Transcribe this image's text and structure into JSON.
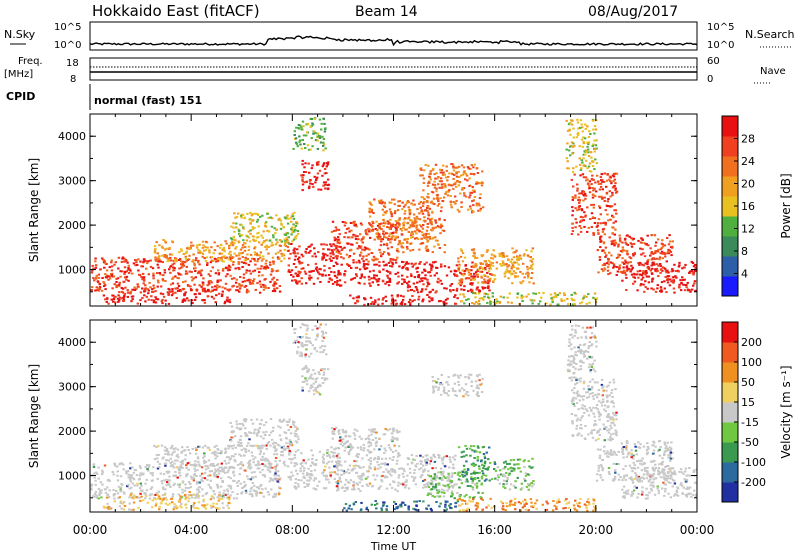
{
  "header": {
    "station": "Hokkaido East (fitACF)",
    "beam": "Beam 14",
    "date": "08/Aug/2017"
  },
  "strips": {
    "noise_label": "N.Sky",
    "noise_ticks": [
      "10^5",
      "10^0"
    ],
    "noise_right_label": "N.Search",
    "freq_label_1": "Freq.",
    "freq_label_2": "[MHz]",
    "freq_ticks": [
      "18",
      "8"
    ],
    "nave_label": "Nave",
    "nave_ticks": [
      "60",
      "0"
    ],
    "cpid_label": "CPID",
    "cpid_value": "normal (fast) 151"
  },
  "colors": {
    "power_scale": [
      "#1a1aff",
      "#2c5fa8",
      "#3a8a5a",
      "#4fb040",
      "#e8c020",
      "#f0a020",
      "#f07020",
      "#f04020",
      "#e81010"
    ],
    "velocity_scale": [
      "#2030a0",
      "#2c6aa0",
      "#3a9a50",
      "#70c840",
      "#c8c8c8",
      "#f0d060",
      "#f09020",
      "#f05a20",
      "#e81010"
    ]
  },
  "chart_data": [
    {
      "type": "heatmap",
      "name": "power",
      "ylabel": "Slant Range [km]",
      "colorbar_label": "Power [dB]",
      "colorbar_ticks": [
        "28",
        "24",
        "20",
        "16",
        "12",
        "8",
        "4"
      ],
      "yticks": [
        "4000",
        "3000",
        "2000",
        "1000"
      ],
      "xticks": [
        "00:00",
        "04:00",
        "08:00",
        "12:00",
        "16:00",
        "20:00",
        "00:00"
      ],
      "ylim": [
        180,
        4500
      ],
      "xlim": [
        0,
        24
      ],
      "regions": [
        {
          "t0": 0.0,
          "t1": 7.5,
          "r0": 500,
          "r1": 1300,
          "level": 7
        },
        {
          "t0": 0.5,
          "t1": 5.5,
          "r0": 250,
          "r1": 600,
          "level": 8
        },
        {
          "t0": 2.5,
          "t1": 7.8,
          "r0": 1200,
          "r1": 1700,
          "level": 5
        },
        {
          "t0": 5.5,
          "t1": 8.2,
          "r0": 1600,
          "r1": 2300,
          "level": 4
        },
        {
          "t0": 8.3,
          "t1": 9.4,
          "r0": 2800,
          "r1": 3500,
          "level": 8
        },
        {
          "t0": 8.0,
          "t1": 9.3,
          "r0": 3700,
          "r1": 4450,
          "level": 3
        },
        {
          "t0": 7.8,
          "t1": 9.8,
          "r0": 700,
          "r1": 1600,
          "level": 8
        },
        {
          "t0": 9.5,
          "t1": 12.2,
          "r0": 1200,
          "r1": 2100,
          "level": 7
        },
        {
          "t0": 9.7,
          "t1": 12.5,
          "r0": 650,
          "r1": 1200,
          "level": 8
        },
        {
          "t0": 11.0,
          "t1": 13.5,
          "r0": 1700,
          "r1": 2600,
          "level": 6
        },
        {
          "t0": 12.5,
          "t1": 15.8,
          "r0": 500,
          "r1": 1200,
          "level": 8
        },
        {
          "t0": 12.0,
          "t1": 14.0,
          "r0": 1400,
          "r1": 2200,
          "level": 6
        },
        {
          "t0": 13.0,
          "t1": 15.5,
          "r0": 2300,
          "r1": 3400,
          "level": 6
        },
        {
          "t0": 14.5,
          "t1": 17.5,
          "r0": 700,
          "r1": 1500,
          "level": 5
        },
        {
          "t0": 10.0,
          "t1": 14.5,
          "r0": 230,
          "r1": 450,
          "level": 8
        },
        {
          "t0": 14.5,
          "t1": 20.0,
          "r0": 230,
          "r1": 500,
          "level": 4
        },
        {
          "t0": 19.0,
          "t1": 20.8,
          "r0": 1800,
          "r1": 3200,
          "level": 7
        },
        {
          "t0": 18.8,
          "t1": 20.0,
          "r0": 3200,
          "r1": 4400,
          "level": 4
        },
        {
          "t0": 20.0,
          "t1": 23.0,
          "r0": 900,
          "r1": 1800,
          "level": 7
        },
        {
          "t0": 21.0,
          "t1": 24.0,
          "r0": 500,
          "r1": 1200,
          "level": 8
        }
      ]
    },
    {
      "type": "heatmap",
      "name": "velocity",
      "ylabel": "Slant Range [km]",
      "colorbar_label": "Velocity [m s⁻¹]",
      "colorbar_ticks": [
        "200",
        "100",
        "50",
        "15",
        "-15",
        "-50",
        "-100",
        "-200"
      ],
      "yticks": [
        "4000",
        "3000",
        "2000",
        "1000"
      ],
      "xticks": [
        "00:00",
        "04:00",
        "08:00",
        "12:00",
        "16:00",
        "20:00",
        "00:00"
      ],
      "xlabel": "Time UT",
      "ylim": [
        180,
        4500
      ],
      "xlim": [
        0,
        24
      ],
      "regions": [
        {
          "t0": 0.0,
          "t1": 7.5,
          "r0": 500,
          "r1": 1300,
          "level": 4
        },
        {
          "t0": 0.5,
          "t1": 5.5,
          "r0": 250,
          "r1": 600,
          "level": 5
        },
        {
          "t0": 2.5,
          "t1": 7.8,
          "r0": 1200,
          "r1": 1700,
          "level": 4
        },
        {
          "t0": 5.5,
          "t1": 8.2,
          "r0": 1600,
          "r1": 2300,
          "level": 4
        },
        {
          "t0": 8.3,
          "t1": 9.4,
          "r0": 2800,
          "r1": 3500,
          "level": 4
        },
        {
          "t0": 8.0,
          "t1": 9.3,
          "r0": 3700,
          "r1": 4450,
          "level": 4
        },
        {
          "t0": 7.8,
          "t1": 9.8,
          "r0": 700,
          "r1": 1600,
          "level": 4
        },
        {
          "t0": 9.5,
          "t1": 12.2,
          "r0": 1200,
          "r1": 2100,
          "level": 4
        },
        {
          "t0": 9.7,
          "t1": 12.5,
          "r0": 650,
          "r1": 1200,
          "level": 4
        },
        {
          "t0": 12.5,
          "t1": 14.5,
          "r0": 700,
          "r1": 1500,
          "level": 4
        },
        {
          "t0": 13.3,
          "t1": 15.5,
          "r0": 500,
          "r1": 1100,
          "level": 3
        },
        {
          "t0": 14.5,
          "t1": 16.0,
          "r0": 900,
          "r1": 1700,
          "level": 2
        },
        {
          "t0": 16.0,
          "t1": 17.5,
          "r0": 700,
          "r1": 1400,
          "level": 3
        },
        {
          "t0": 10.0,
          "t1": 14.5,
          "r0": 230,
          "r1": 450,
          "level": 1
        },
        {
          "t0": 14.5,
          "t1": 20.0,
          "r0": 230,
          "r1": 500,
          "level": 6
        },
        {
          "t0": 13.5,
          "t1": 15.5,
          "r0": 2800,
          "r1": 3300,
          "level": 4
        },
        {
          "t0": 19.0,
          "t1": 20.8,
          "r0": 1800,
          "r1": 3200,
          "level": 4
        },
        {
          "t0": 18.8,
          "t1": 20.0,
          "r0": 3200,
          "r1": 4400,
          "level": 4
        },
        {
          "t0": 20.0,
          "t1": 23.0,
          "r0": 900,
          "r1": 1800,
          "level": 4
        },
        {
          "t0": 21.0,
          "t1": 24.0,
          "r0": 500,
          "r1": 1200,
          "level": 4
        }
      ]
    }
  ]
}
